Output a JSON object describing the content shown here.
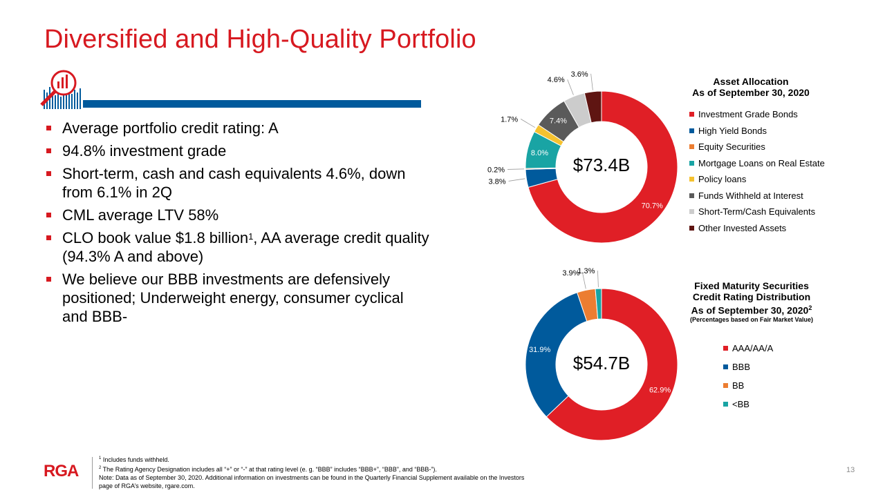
{
  "slide": {
    "title": "Diversified and High-Quality Portfolio",
    "page_number": "13"
  },
  "bullets": [
    {
      "text": "Average portfolio credit rating: A"
    },
    {
      "text": "94.8% investment grade"
    },
    {
      "text": "Short-term, cash and cash equivalents 4.6%, down from 6.1% in 2Q"
    },
    {
      "text": "CML average LTV 58%"
    },
    {
      "text_pre": "CLO book value $1.8 billion",
      "sup": "1",
      "text_post": ", AA average credit quality (94.3% A and above)"
    },
    {
      "text": "We believe our BBB investments are defensively positioned; Underweight energy, consumer cyclical and BBB-"
    }
  ],
  "colors": {
    "brand_red": "#d71920",
    "brand_blue": "#005a9c",
    "orange": "#ec7d31",
    "teal": "#19a4a4",
    "yellow": "#f5c230",
    "dark_gray": "#5a5a5a",
    "light_gray": "#cccccc",
    "maroon": "#5f1512"
  },
  "icons": {
    "header_icon": "analytics-magnifier-icon"
  },
  "footer": {
    "logo_text": "RGA",
    "note1_sup": "1",
    "note1": " Includes funds withheld.",
    "note2_sup": "2",
    "note2": " The Rating Agency Designation includes all “+” or “-” at that rating level (e. g. “BBB” includes “BBB+”, “BBB”, and “BBB-”).",
    "note3": "Note:  Data as of September 30, 2020.  Additional information on investments can be found in the Quarterly Financial Supplement available on the Investors page of RGA’s website, rgare.com."
  },
  "chart_data": [
    {
      "type": "pie",
      "variant": "donut",
      "title_line1": "Asset Allocation",
      "title_line2": "As of September 30, 2020",
      "center_label": "$73.4B",
      "legend_position": "right",
      "categories": [
        "Investment Grade Bonds",
        "High Yield Bonds",
        "Equity Securities",
        "Mortgage Loans on Real Estate",
        "Policy loans",
        "Funds Withheld at Interest",
        "Short-Term/Cash Equivalents",
        "Other Invested Assets"
      ],
      "values": [
        70.7,
        3.8,
        0.2,
        8.0,
        1.7,
        7.4,
        4.6,
        3.6
      ],
      "labels": [
        "70.7%",
        "3.8%",
        "0.2%",
        "8.0%",
        "1.7%",
        "7.4%",
        "4.6%",
        "3.6%"
      ],
      "colors": [
        "#e01f26",
        "#005a9c",
        "#ec7d31",
        "#19a4a4",
        "#f5c230",
        "#5a5a5a",
        "#cccccc",
        "#5f1512"
      ]
    },
    {
      "type": "pie",
      "variant": "donut",
      "title_line1": "Fixed Maturity Securities",
      "title_line2": "Credit Rating Distribution",
      "title_line3": "As of September 30, 2020",
      "title_line3_sup": "2",
      "subtitle": "(Percentages based on Fair Market Value)",
      "center_label": "$54.7B",
      "legend_position": "right",
      "categories": [
        "AAA/AA/A",
        "BBB",
        "BB",
        "<BB"
      ],
      "values": [
        62.9,
        31.9,
        3.9,
        1.3
      ],
      "labels": [
        "62.9%",
        "31.9%",
        "3.9%",
        "1.3%"
      ],
      "colors": [
        "#e01f26",
        "#005a9c",
        "#ec7d31",
        "#19a4a4"
      ]
    }
  ]
}
